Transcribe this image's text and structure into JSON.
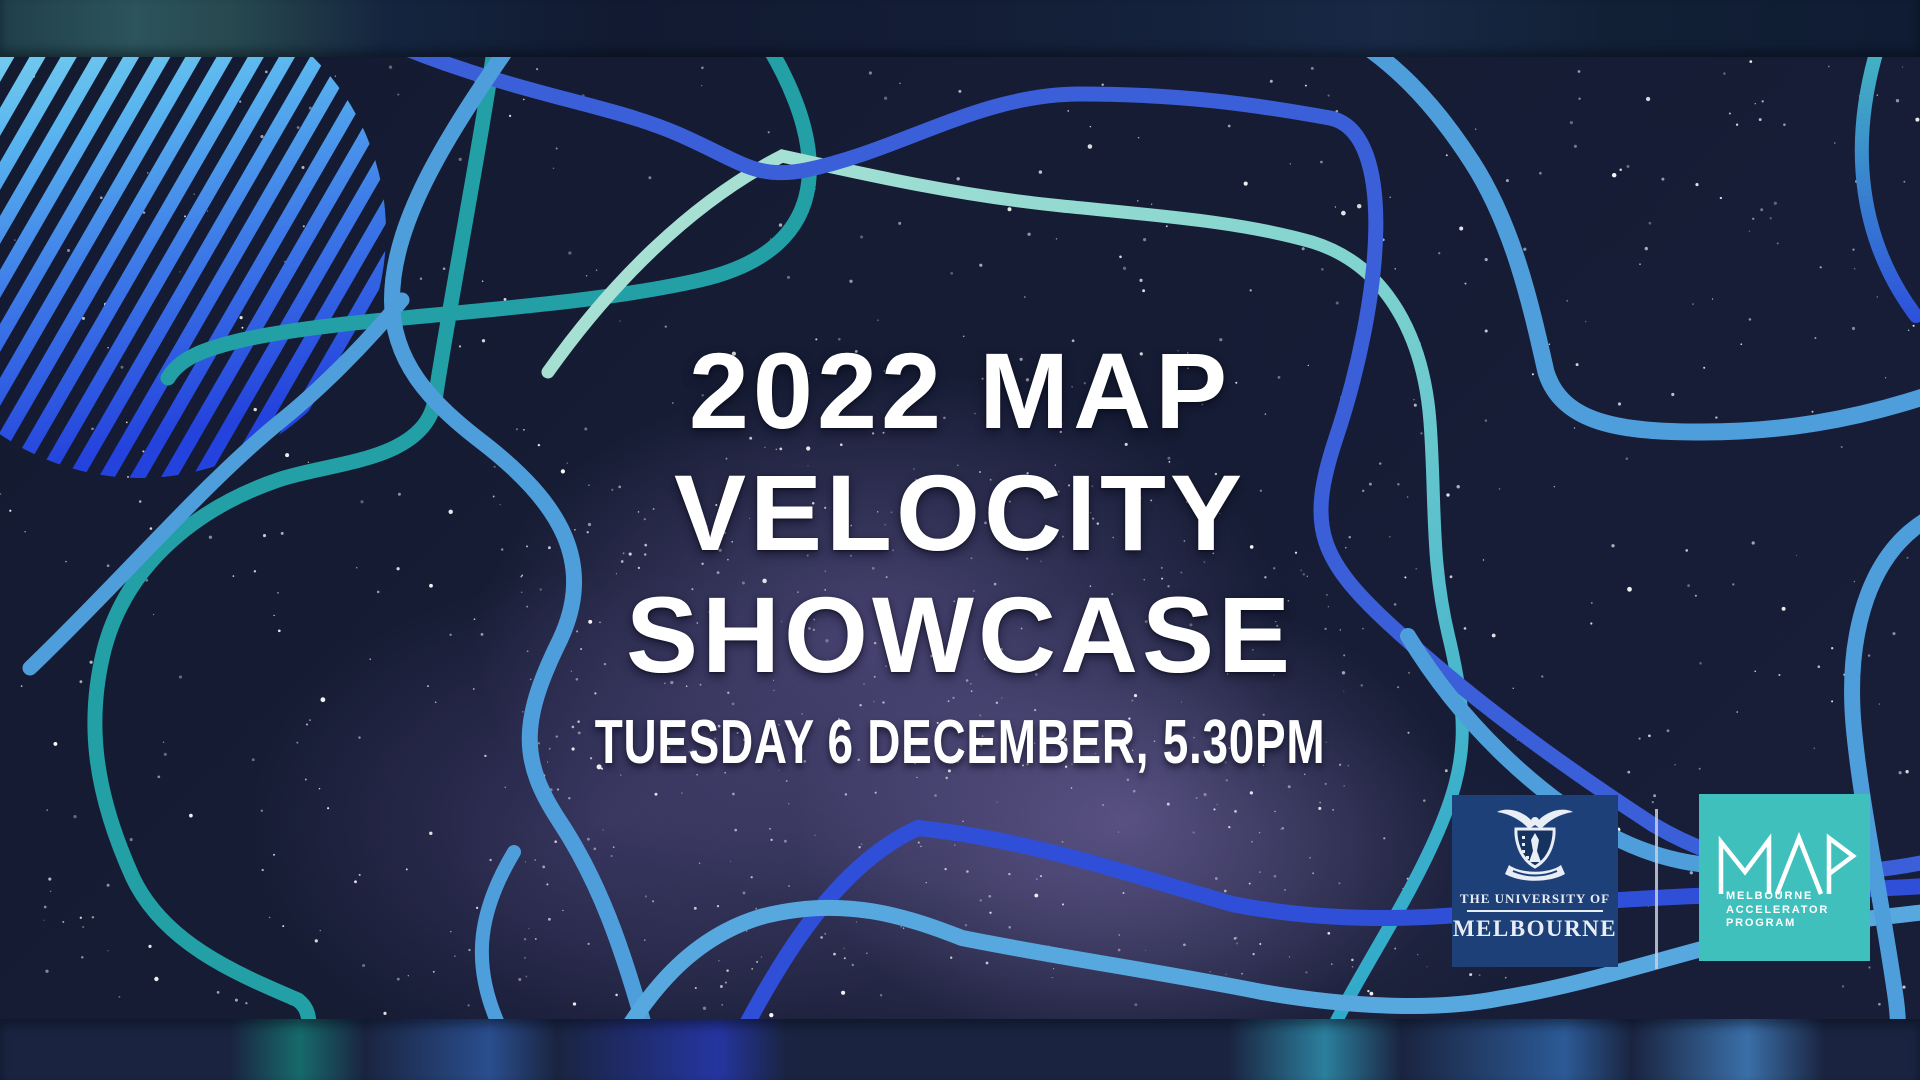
{
  "meta": {
    "description": "Starry-sky event banner with wavy line decorations and partner logos"
  },
  "hero": {
    "title_line1": "2022 MAP",
    "title_line2": "VELOCITY",
    "title_line3": "SHOWCASE",
    "datetime": "TUESDAY 6 DECEMBER, 5.30PM"
  },
  "logos": {
    "unimelb": {
      "line1": "THE UNIVERSITY OF",
      "line2": "MELBOURNE"
    },
    "map": {
      "acronym": "MAP",
      "line1": "MELBOURNE",
      "line2": "ACCELERATOR",
      "line3": "PROGRAM"
    }
  },
  "colors": {
    "background_navy": "#161c34",
    "nebula_purple": "#7d6cb2",
    "star_white": "#ffffff",
    "teal_line": "#22a0a6",
    "sky_blue_line": "#4f9edc",
    "royal_blue_line": "#2f4fd8",
    "steel_blue_line": "#4a79da",
    "mint_line": "#ace2d4",
    "cyan_line": "#2fa9c9",
    "circle_gradient_top": "#8fe2ec",
    "circle_gradient_bottom": "#2442dd",
    "unimelb_navy": "#1d4079",
    "map_teal": "#3fc0bd",
    "text_white": "#ffffff"
  }
}
